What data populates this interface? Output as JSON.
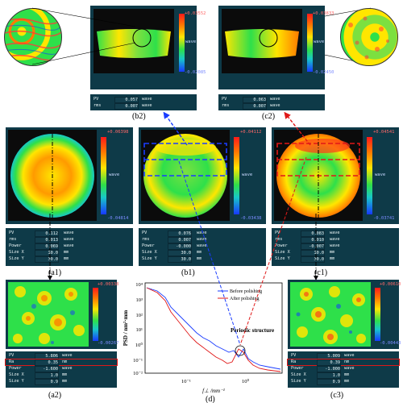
{
  "captions": {
    "b2": "(b2)",
    "c2": "(c2)",
    "a1": "(a1)",
    "b1": "(b1)",
    "c1": "(c1)",
    "a2": "(a2)",
    "d": "(d)",
    "c3": "(c3)"
  },
  "b2": {
    "cbar_top": "+0.03552",
    "cbar_bottom": "-0.02085",
    "unit": "wave",
    "rows": [
      {
        "k": "PV",
        "v": "0.057",
        "u": "wave"
      },
      {
        "k": "rms",
        "v": "0.007",
        "u": "wave"
      }
    ]
  },
  "c2": {
    "cbar_top": "+0.03833",
    "cbar_bottom": "-0.02450",
    "unit": "wave",
    "rows": [
      {
        "k": "PV",
        "v": "0.063",
        "u": "wave"
      },
      {
        "k": "rms",
        "v": "0.007",
        "u": "wave"
      }
    ]
  },
  "a1": {
    "cbar_top": "+0.06398",
    "cbar_bottom": "-0.04814",
    "unit": "wave",
    "rows": [
      {
        "k": "PV",
        "v": "0.112",
        "u": "wave"
      },
      {
        "k": "rms",
        "v": "0.013",
        "u": "wave"
      },
      {
        "k": "Power",
        "v": "0.069",
        "u": "wave"
      },
      {
        "k": "Size X",
        "v": "30.0",
        "u": "mm"
      },
      {
        "k": "Size Y",
        "v": "30.0",
        "u": "mm"
      }
    ]
  },
  "b1": {
    "cbar_top": "+0.04112",
    "cbar_bottom": "-0.03438",
    "unit": "wave",
    "rows": [
      {
        "k": "PV",
        "v": "0.076",
        "u": "wave"
      },
      {
        "k": "rms",
        "v": "0.007",
        "u": "wave"
      },
      {
        "k": "Power",
        "v": "-0.000",
        "u": "wave"
      },
      {
        "k": "Size X",
        "v": "30.0",
        "u": "mm"
      },
      {
        "k": "Size Y",
        "v": "30.0",
        "u": "mm"
      }
    ]
  },
  "c1": {
    "cbar_top": "+0.04541",
    "cbar_bottom": "-0.03741",
    "unit": "wave",
    "rows": [
      {
        "k": "PV",
        "v": "0.083",
        "u": "wave"
      },
      {
        "k": "rms",
        "v": "0.010",
        "u": "wave"
      },
      {
        "k": "Power",
        "v": "-0.007",
        "u": "wave"
      },
      {
        "k": "Size X",
        "v": "30.0",
        "u": "mm"
      },
      {
        "k": "Size Y",
        "v": "30.0",
        "u": "mm"
      }
    ]
  },
  "a2": {
    "cbar_top": "+0.00338",
    "cbar_bottom": "-0.00267",
    "rows": [
      {
        "k": "PV",
        "v": "5.806",
        "u": "wave"
      },
      {
        "k": "Ra",
        "v": "0.35",
        "u": "nm"
      },
      {
        "k": "Power",
        "v": "-1.600",
        "u": "wave"
      },
      {
        "k": "Size X",
        "v": "1.0",
        "u": "mm"
      },
      {
        "k": "Size Y",
        "v": "0.9",
        "u": "mm"
      }
    ]
  },
  "c3": {
    "cbar_top": "+0.00610",
    "cbar_bottom": "-0.00443",
    "rows": [
      {
        "k": "PV",
        "v": "5.009",
        "u": "wave"
      },
      {
        "k": "Ra",
        "v": "0.39",
        "u": "nm"
      },
      {
        "k": "Power",
        "v": "-1.000",
        "u": "wave"
      },
      {
        "k": "Size X",
        "v": "1.0",
        "u": "mm"
      },
      {
        "k": "Size Y",
        "v": "0.9",
        "u": "mm"
      }
    ]
  },
  "psd": {
    "ylabel": "PSD / nm²·mm",
    "xlabel": "f⊥ /mm⁻¹",
    "legend_before": "Before polishing",
    "legend_after": "After polishing",
    "annotation": "Periodic structure",
    "yticks": [
      "10⁴",
      "10³",
      "10²",
      "10¹",
      "10⁰",
      "10⁻¹",
      "10⁻²"
    ],
    "xticks": [
      "10⁻¹",
      "10⁰"
    ]
  },
  "colors": {
    "before": "#1a3cff",
    "after": "#e01818",
    "panel": "#0e3a48"
  }
}
